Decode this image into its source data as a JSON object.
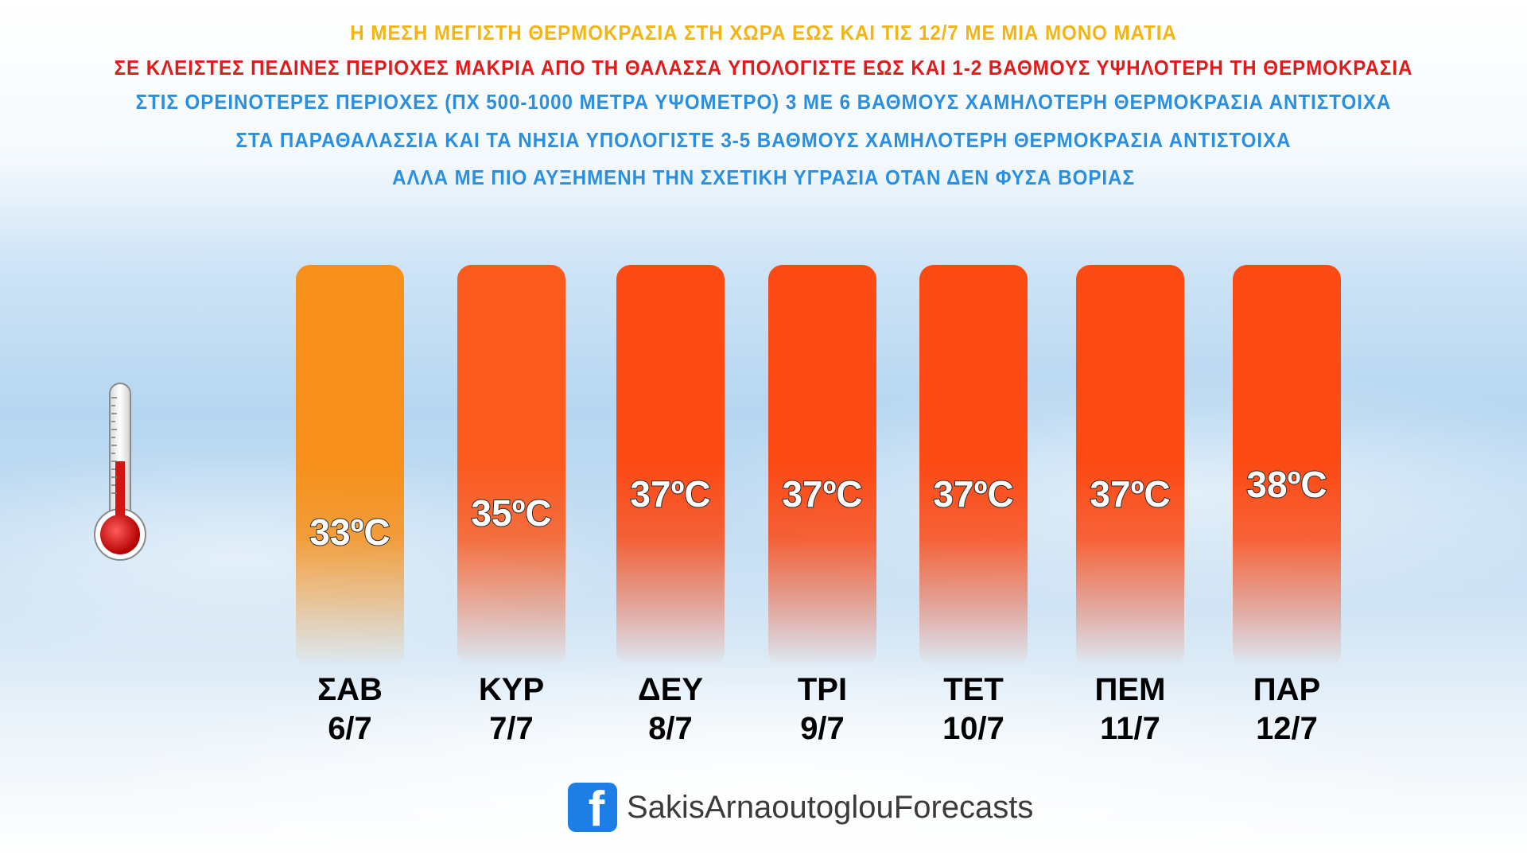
{
  "headings": {
    "line1": "Η ΜΕΣΗ ΜΕΓΙΣΤΗ ΘΕΡΜΟΚΡΑΣΙΑ ΣΤΗ ΧΩΡΑ ΕΩΣ ΚΑΙ ΤΙΣ 12/7 ΜΕ ΜΙΑ ΜΟΝΟ ΜΑΤΙΑ",
    "line2": "ΣΕ ΚΛΕΙΣΤΕΣ ΠΕΔΙΝΕΣ ΠΕΡΙΟΧΕΣ ΜΑΚΡΙΑ ΑΠΟ ΤΗ ΘΑΛΑΣΣΑ ΥΠΟΛΟΓΙΣΤΕ ΕΩΣ ΚΑΙ 1-2 ΒΑΘΜΟΥΣ ΥΨΗΛΟΤΕΡΗ ΤΗ ΘΕΡΜΟΚΡΑΣΙΑ",
    "line3": "ΣΤΙΣ ΟΡΕΙΝΟΤΕΡΕΣ ΠΕΡΙΟΧΕΣ (ΠΧ 500-1000 ΜΕΤΡΑ ΥΨΟΜΕΤΡΟ) 3 ΜΕ 6 ΒΑΘΜΟΥΣ ΧΑΜΗΛΟΤΕΡΗ ΘΕΡΜΟΚΡΑΣΙΑ ΑΝΤΙΣΤΟΙΧΑ",
    "line4": "ΣΤΑ ΠΑΡΑΘΑΛΑΣΣΙΑ ΚΑΙ ΤΑ ΝΗΣΙΑ ΥΠΟΛΟΓΙΣΤΕ 3-5 ΒΑΘΜΟΥΣ ΧΑΜΗΛΟΤΕΡΗ ΘΕΡΜΟΚΡΑΣΙΑ ΑΝΤΙΣΤΟΙΧΑ",
    "line5": "ΑΛΛΑ ΜΕ ΠΙΟ ΑΥΞΗΜΕΝΗ ΤΗΝ ΣΧΕΤΙΚΗ ΥΓΡΑΣΙΑ ΟΤΑΝ ΔΕΝ ΦΥΣΑ ΒΟΡΙΑΣ"
  },
  "colors": {
    "line1": "#f2b514",
    "line2": "#e01b1b",
    "line3_to_5": "#2a8fde",
    "bar_first": "#f7901a",
    "bar_mid": "#fb5a1e",
    "bar_hot": "#fc4a15",
    "facebook_blue": "#1d7fe6"
  },
  "chart_data": {
    "type": "bar",
    "categories": [
      [
        "ΣΑΒ",
        "6/7"
      ],
      [
        "ΚΥΡ",
        "7/7"
      ],
      [
        "ΔΕΥ",
        "8/7"
      ],
      [
        "ΤΡΙ",
        "9/7"
      ],
      [
        "ΤΕΤ",
        "10/7"
      ],
      [
        "ΠΕΜ",
        "11/7"
      ],
      [
        "ΠΑΡ",
        "12/7"
      ]
    ],
    "values": [
      33,
      35,
      37,
      37,
      37,
      37,
      38
    ],
    "value_labels": [
      "33ºC",
      "35ºC",
      "37ºC",
      "37ºC",
      "37ºC",
      "37ºC",
      "38ºC"
    ],
    "bar_colors": [
      "#f7901a",
      "#fb5a1e",
      "#fc4a15",
      "#fc4a15",
      "#fc4a15",
      "#fc4a15",
      "#fc4a15"
    ],
    "grid": false,
    "legend": "none"
  },
  "thermometer_icon": "thermometer-icon",
  "footer": {
    "icon": "facebook-icon",
    "icon_glyph": "f",
    "name": "SakisArnaoutoglouForecasts"
  }
}
